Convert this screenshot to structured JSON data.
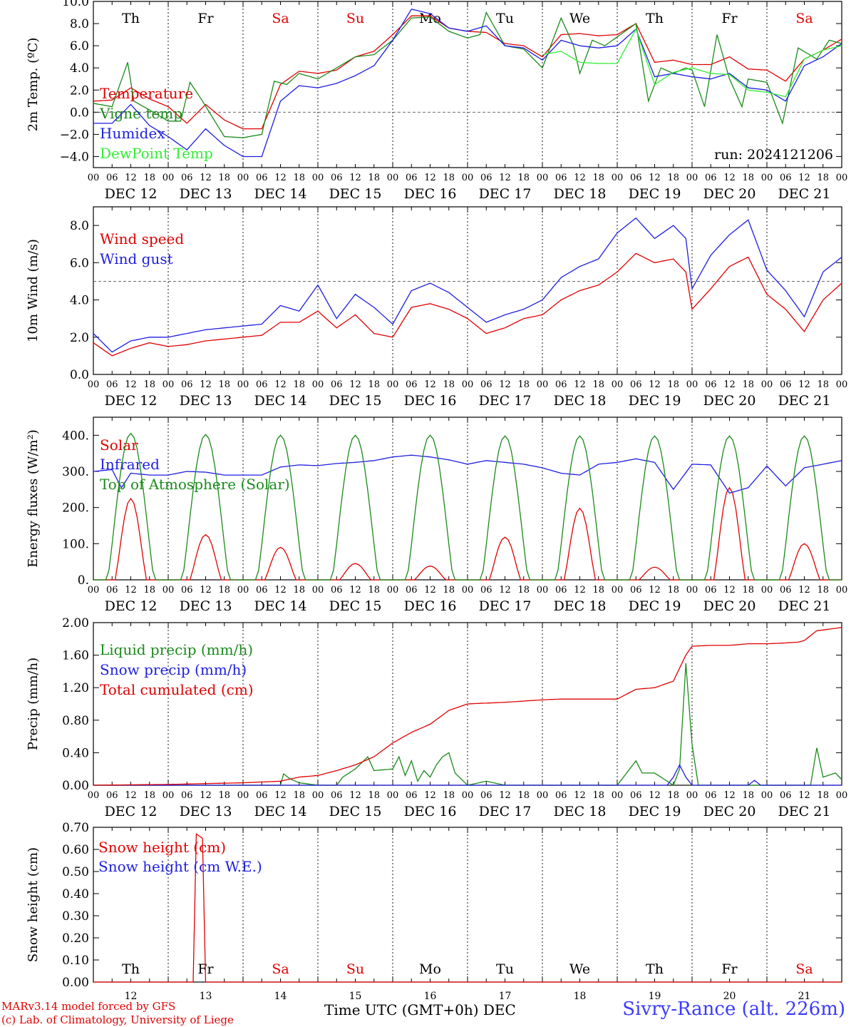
{
  "days": [
    "12",
    "13",
    "14",
    "15",
    "16",
    "17",
    "18",
    "19",
    "20",
    "21"
  ],
  "month": "DEC",
  "weekdays": [
    "Th",
    "Fr",
    "Sa",
    "Su",
    "Mo",
    "Tu",
    "We",
    "Th",
    "Fr",
    "Sa"
  ],
  "weekend_color": "#e00000",
  "hour_ticks": [
    "00",
    "06",
    "12",
    "18"
  ],
  "end_tick": "00",
  "footer": {
    "credit_line1": "MARv3.14 model forced by GFS",
    "credit_line2": "(c) Lab. of Climatology, University of Liege",
    "xlabel": "Time UTC (GMT+0h)",
    "month_label": "DEC",
    "station": "Sivry-Rance (alt. 226m)"
  },
  "chart_data": [
    {
      "type": "line",
      "panel": "temperature",
      "ylabel": "2m Temp. (ºC)",
      "ylim": [
        -5,
        10
      ],
      "yticks": [
        "-4.0",
        "-2.0",
        "0.0",
        "2.0",
        "4.0",
        "6.0",
        "8.0",
        "10.0"
      ],
      "annotation": "run: 2024121206",
      "reference_line": 0,
      "x_unit": "hours since DEC 12 00 UTC",
      "series": [
        {
          "name": "Temperature",
          "color": "#e00000",
          "x": [
            0,
            6,
            12,
            18,
            24,
            30,
            36,
            42,
            48,
            54,
            60,
            66,
            72,
            78,
            84,
            90,
            96,
            102,
            108,
            114,
            120,
            126,
            132,
            138,
            144,
            150,
            156,
            162,
            168,
            174,
            180,
            186,
            192,
            198,
            204,
            210,
            216,
            222,
            228,
            234,
            240
          ],
          "y": [
            1.0,
            1.1,
            2.2,
            1.2,
            0.5,
            -1.0,
            0.7,
            -0.7,
            -1.5,
            -1.5,
            2.5,
            3.7,
            3.5,
            3.8,
            5.0,
            5.5,
            7.0,
            8.7,
            8.7,
            7.6,
            7.3,
            7.2,
            6.2,
            6.0,
            5.0,
            7.0,
            7.1,
            6.9,
            7.0,
            8.0,
            4.5,
            4.7,
            4.3,
            4.3,
            5.0,
            3.9,
            3.8,
            2.8,
            4.8,
            5.6,
            6.6
          ]
        },
        {
          "name": "Vigne temp",
          "color": "#1a8a1a",
          "x": [
            0,
            6,
            11,
            13,
            18,
            24,
            28,
            31,
            35,
            42,
            48,
            54,
            58,
            62,
            66,
            72,
            78,
            84,
            90,
            96,
            102,
            108,
            114,
            120,
            124,
            126,
            132,
            138,
            144,
            150,
            154,
            156,
            160,
            164,
            168,
            174,
            178,
            182,
            186,
            190,
            192,
            196,
            200,
            204,
            208,
            210,
            216,
            221,
            226,
            232,
            236,
            240
          ],
          "y": [
            0.8,
            0.5,
            4.5,
            1.0,
            0.2,
            -0.8,
            -0.8,
            2.7,
            1.0,
            -2.2,
            -2.3,
            -2.0,
            2.8,
            2.5,
            3.5,
            3.0,
            4.0,
            5.0,
            5.2,
            6.5,
            8.5,
            8.6,
            7.3,
            6.7,
            7.0,
            9.0,
            6.0,
            5.7,
            4.0,
            8.5,
            6.0,
            3.5,
            6.5,
            6.0,
            6.8,
            8.0,
            1.0,
            4.0,
            3.5,
            4.0,
            3.8,
            0.5,
            7.0,
            3.0,
            0.5,
            3.0,
            2.7,
            -1.0,
            5.8,
            4.8,
            6.5,
            6.2
          ]
        },
        {
          "name": "Humidex",
          "color": "#1e1ee0",
          "x": [
            0,
            6,
            12,
            18,
            24,
            30,
            36,
            42,
            48,
            54,
            60,
            66,
            72,
            78,
            84,
            90,
            96,
            102,
            108,
            114,
            120,
            126,
            132,
            138,
            144,
            150,
            156,
            162,
            168,
            174,
            180,
            186,
            192,
            198,
            204,
            210,
            216,
            222,
            228,
            234,
            240
          ],
          "y": [
            -1.0,
            -1.0,
            0.7,
            -1.2,
            -2.2,
            -3.4,
            -1.5,
            -3.0,
            -4.0,
            -4.0,
            1.0,
            2.4,
            2.2,
            2.6,
            3.3,
            4.2,
            6.5,
            9.3,
            8.9,
            7.6,
            7.3,
            7.8,
            6.0,
            5.8,
            4.7,
            6.5,
            6.0,
            5.8,
            6.0,
            7.5,
            3.2,
            3.5,
            3.2,
            3.0,
            3.5,
            2.2,
            2.0,
            1.0,
            4.2,
            5.0,
            6.2
          ]
        },
        {
          "name": "DewPoint Temp",
          "color": "#33ee33",
          "x": [
            144,
            150,
            156,
            162,
            168,
            174,
            180,
            186,
            192,
            198,
            204,
            210,
            216,
            222,
            228,
            234,
            240
          ],
          "y": [
            5.2,
            5.5,
            4.5,
            4.4,
            4.4,
            7.5,
            2.5,
            3.6,
            4.0,
            3.5,
            3.4,
            2.0,
            1.8,
            1.4,
            4.8,
            5.6,
            6.0
          ]
        }
      ]
    },
    {
      "type": "line",
      "panel": "wind",
      "ylabel": "10m Wind (m/s)",
      "ylim": [
        0,
        9
      ],
      "yticks": [
        "0.0",
        "2.0",
        "4.0",
        "6.0",
        "8.0"
      ],
      "reference_line": 5,
      "x_unit": "hours since DEC 12 00 UTC",
      "series": [
        {
          "name": "Wind speed",
          "color": "#e00000",
          "x": [
            0,
            6,
            12,
            18,
            24,
            30,
            36,
            42,
            48,
            54,
            60,
            66,
            72,
            78,
            84,
            90,
            96,
            102,
            108,
            114,
            120,
            126,
            132,
            138,
            144,
            150,
            156,
            162,
            168,
            174,
            180,
            186,
            190,
            192,
            198,
            204,
            210,
            216,
            222,
            228,
            234,
            240
          ],
          "y": [
            1.7,
            1.0,
            1.4,
            1.7,
            1.5,
            1.6,
            1.8,
            1.9,
            2.0,
            2.1,
            2.8,
            2.8,
            3.4,
            2.5,
            3.2,
            2.2,
            2.0,
            3.6,
            3.8,
            3.5,
            3.0,
            2.2,
            2.5,
            3.0,
            3.2,
            4.0,
            4.5,
            4.8,
            5.5,
            6.5,
            6.0,
            6.2,
            5.5,
            3.5,
            4.6,
            5.8,
            6.3,
            4.3,
            3.5,
            2.3,
            4.0,
            4.9
          ]
        },
        {
          "name": "Wind gust",
          "color": "#1e1ee0",
          "x": [
            0,
            6,
            12,
            18,
            24,
            30,
            36,
            42,
            48,
            54,
            60,
            66,
            72,
            78,
            84,
            90,
            96,
            102,
            108,
            114,
            120,
            126,
            132,
            138,
            144,
            150,
            156,
            162,
            168,
            174,
            180,
            186,
            190,
            192,
            198,
            204,
            210,
            216,
            222,
            228,
            234,
            240
          ],
          "y": [
            2.2,
            1.2,
            1.8,
            2.0,
            2.0,
            2.2,
            2.4,
            2.5,
            2.6,
            2.7,
            3.7,
            3.4,
            4.8,
            3.0,
            4.3,
            3.6,
            2.7,
            4.5,
            4.9,
            4.4,
            3.6,
            2.8,
            3.2,
            3.5,
            4.0,
            5.2,
            5.8,
            6.2,
            7.6,
            8.4,
            7.3,
            8.0,
            7.3,
            4.6,
            6.4,
            7.5,
            8.3,
            5.6,
            4.5,
            3.1,
            5.5,
            6.3
          ]
        }
      ]
    },
    {
      "type": "line",
      "panel": "energy",
      "ylabel": "Energy fluxes (W/m²)",
      "ylim": [
        0,
        450
      ],
      "yticks": [
        "0.",
        "100.",
        "200.",
        "300.",
        "400."
      ],
      "x_unit": "hours since DEC 12 00 UTC",
      "daily_peaks": {
        "solar": [
          225,
          125,
          90,
          45,
          38,
          118,
          198,
          35,
          255,
          100
        ],
        "top_of_atmosphere": [
          405,
          402,
          400,
          400,
          400,
          398,
          398,
          398,
          398,
          398
        ]
      },
      "series": [
        {
          "name": "Solar",
          "color": "#e00000"
        },
        {
          "name": "Infrared",
          "color": "#1e1ee0",
          "x": [
            0,
            6,
            9,
            12,
            18,
            24,
            30,
            36,
            42,
            48,
            54,
            60,
            66,
            72,
            78,
            84,
            90,
            96,
            102,
            108,
            114,
            120,
            126,
            132,
            138,
            144,
            150,
            156,
            162,
            168,
            174,
            180,
            186,
            192,
            198,
            204,
            210,
            216,
            222,
            228,
            234,
            240
          ],
          "y": [
            300,
            305,
            255,
            295,
            290,
            290,
            300,
            298,
            290,
            290,
            290,
            312,
            318,
            316,
            322,
            325,
            330,
            340,
            345,
            340,
            332,
            320,
            330,
            325,
            320,
            310,
            295,
            290,
            320,
            325,
            335,
            325,
            250,
            320,
            318,
            240,
            255,
            315,
            260,
            310,
            320,
            330
          ]
        },
        {
          "name": "Top of Atmosphere (Solar)",
          "color": "#1a8a1a"
        }
      ]
    },
    {
      "type": "line",
      "panel": "precip",
      "ylabel": "Precip (mm/h)",
      "ylim": [
        0,
        2
      ],
      "yticks": [
        "0.00",
        "0.40",
        "0.80",
        "1.20",
        "1.60",
        "2.00"
      ],
      "x_unit": "hours since DEC 12 00 UTC",
      "series": [
        {
          "name": "Liquid precip (mm/h)",
          "color": "#1a8a1a",
          "x": [
            0,
            60,
            61,
            63,
            66,
            72,
            78,
            80,
            84,
            88,
            90,
            96,
            98,
            100,
            102,
            104,
            106,
            108,
            110,
            112,
            114,
            116,
            120,
            126,
            132,
            138,
            144,
            150,
            156,
            162,
            168,
            174,
            176,
            180,
            186,
            188,
            190,
            192,
            194,
            196,
            198,
            204,
            210,
            216,
            222,
            228,
            230,
            232,
            234,
            238,
            240
          ],
          "y": [
            0,
            0,
            0.14,
            0.08,
            0.03,
            0.0,
            0.0,
            0.1,
            0.2,
            0.35,
            0.18,
            0.2,
            0.35,
            0.12,
            0.3,
            0.05,
            0.18,
            0.1,
            0.25,
            0.35,
            0.4,
            0.15,
            0.0,
            0.05,
            0.0,
            0.0,
            0.0,
            0.0,
            0.0,
            0.0,
            0.0,
            0.3,
            0.15,
            0.15,
            0.0,
            0.2,
            1.5,
            0.5,
            0.0,
            0.0,
            0.0,
            0.0,
            0.0,
            0.0,
            0.0,
            0.0,
            0.0,
            0.46,
            0.1,
            0.15,
            0.07
          ]
        },
        {
          "name": "Snow precip (mm/h)",
          "color": "#1e1ee0",
          "x": [
            0,
            184,
            186,
            188,
            190,
            192,
            210,
            212,
            214,
            240
          ],
          "y": [
            0,
            0,
            0.1,
            0.25,
            0.1,
            0,
            0,
            0.06,
            0,
            0
          ]
        },
        {
          "name": "Total cumulated (cm)",
          "color": "#e00000",
          "x": [
            0,
            24,
            48,
            60,
            66,
            72,
            78,
            84,
            90,
            96,
            102,
            108,
            114,
            120,
            132,
            144,
            150,
            156,
            162,
            168,
            174,
            180,
            186,
            190,
            192,
            198,
            204,
            210,
            216,
            222,
            226,
            228,
            232,
            240
          ],
          "y": [
            0.0,
            0.01,
            0.03,
            0.05,
            0.1,
            0.12,
            0.18,
            0.25,
            0.35,
            0.52,
            0.65,
            0.75,
            0.92,
            1.0,
            1.02,
            1.05,
            1.06,
            1.06,
            1.06,
            1.06,
            1.18,
            1.2,
            1.28,
            1.6,
            1.71,
            1.72,
            1.72,
            1.74,
            1.74,
            1.75,
            1.76,
            1.78,
            1.9,
            1.94
          ]
        }
      ]
    },
    {
      "type": "line",
      "panel": "snow",
      "ylabel": "Snow height (cm)",
      "ylim": [
        0,
        0.7
      ],
      "yticks": [
        "0.00",
        "0.10",
        "0.20",
        "0.30",
        "0.40",
        "0.50",
        "0.60",
        "0.70"
      ],
      "x_unit": "hours since DEC 12 00 UTC",
      "series": [
        {
          "name": "Snow height (cm)",
          "color": "#e00000",
          "x": [
            0,
            32,
            33,
            34,
            35,
            36,
            240
          ],
          "y": [
            0,
            0,
            0.67,
            0.66,
            0.65,
            0,
            0
          ]
        },
        {
          "name": "Snow height (cm W.E.)",
          "color": "#1e1ee0"
        }
      ]
    }
  ]
}
